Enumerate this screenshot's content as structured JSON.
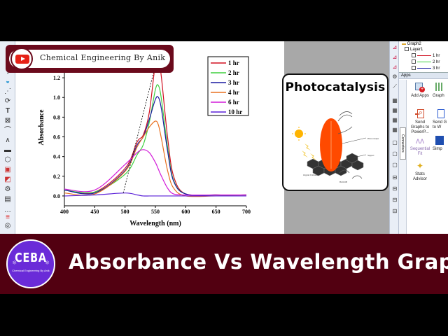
{
  "channel": {
    "name": "Chemical Engineering By Anik",
    "icon": "youtube-icon"
  },
  "banner": {
    "title": "Absorbance Vs Wavelength Graph",
    "logo_text": "CEBA",
    "logo_subtext": "Chemical Engineering By Anik",
    "background": "#520011",
    "logo_color": "#6a2bd8"
  },
  "photo_card": {
    "title": "Photocatalysis",
    "illustration": "photocatalysis-diagram"
  },
  "object_manager": {
    "graph": "Graph2",
    "layer": "Layer1",
    "plots": [
      {
        "label": "1 hr",
        "color": "#d01020"
      },
      {
        "label": "2 hr",
        "color": "#3ecf3e"
      },
      {
        "label": "3 hr",
        "color": "#1a1aa0"
      }
    ]
  },
  "apps_panel": {
    "header": "Apps",
    "side_tab": "Connectors",
    "items": [
      {
        "label": "Add Apps",
        "icon": "add-apps-icon"
      },
      {
        "label": "Graph",
        "icon": "graph-app-icon"
      },
      {
        "label": "Send Graphs to PowerP...",
        "icon": "powerpoint-icon"
      },
      {
        "label": "Send G to W",
        "icon": "word-icon"
      },
      {
        "label": "Sequential Fit",
        "icon": "sequential-fit-icon"
      },
      {
        "label": "Simp",
        "icon": "simple-app-icon"
      },
      {
        "label": "Stats Advisor",
        "icon": "magic-wand-icon"
      }
    ]
  },
  "chart_data": {
    "type": "line",
    "title": "",
    "xlabel": "Wavelength (nm)",
    "ylabel": "Absorbance",
    "xlim": [
      400,
      700
    ],
    "ylim": [
      -0.1,
      1.35
    ],
    "xticks": [
      400,
      450,
      500,
      550,
      600,
      650,
      700
    ],
    "yticks": [
      "0.0",
      "0.2",
      "0.4",
      "0.6",
      "0.8",
      "1.0",
      "1.2"
    ],
    "grid": false,
    "legend_position": "upper right",
    "x": [
      400,
      450,
      500,
      520,
      530,
      540,
      550,
      555,
      560,
      570,
      580,
      600,
      650,
      700
    ],
    "series": [
      {
        "name": "1 hr",
        "color": "#d01020",
        "values": [
          0.06,
          0.04,
          0.28,
          0.55,
          0.62,
          0.85,
          1.35,
          1.4,
          1.2,
          0.6,
          0.2,
          0.02,
          0.01,
          0.01
        ]
      },
      {
        "name": "2 hr",
        "color": "#3ecf3e",
        "values": [
          0.06,
          0.04,
          0.22,
          0.42,
          0.52,
          0.75,
          1.08,
          1.12,
          0.98,
          0.5,
          0.16,
          0.02,
          0.01,
          0.01
        ]
      },
      {
        "name": "3 hr",
        "color": "#1a1aa0",
        "values": [
          0.06,
          0.03,
          0.26,
          0.52,
          0.6,
          0.78,
          0.98,
          1.0,
          0.88,
          0.46,
          0.15,
          0.02,
          0.01,
          0.01
        ]
      },
      {
        "name": "4 hr",
        "color": "#e87020",
        "values": [
          0.03,
          0.02,
          0.25,
          0.5,
          0.6,
          0.7,
          0.76,
          0.72,
          0.58,
          0.26,
          0.08,
          0.0,
          0.0,
          0.0
        ]
      },
      {
        "name": "6 hr",
        "color": "#d21ad8",
        "values": [
          0.07,
          0.06,
          0.32,
          0.44,
          0.47,
          0.44,
          0.34,
          0.27,
          0.2,
          0.08,
          0.02,
          0.01,
          0.01,
          0.01
        ]
      },
      {
        "name": "10 hr",
        "color": "#5a20d8",
        "values": [
          0.0,
          0.01,
          0.03,
          0.01,
          0.0,
          0.0,
          0.0,
          0.0,
          0.0,
          0.0,
          0.0,
          0.0,
          0.0,
          0.0
        ]
      }
    ],
    "annotations": [
      "dashed line connecting peak maxima (blue shift from ~555 nm to ~497 nm)"
    ]
  }
}
